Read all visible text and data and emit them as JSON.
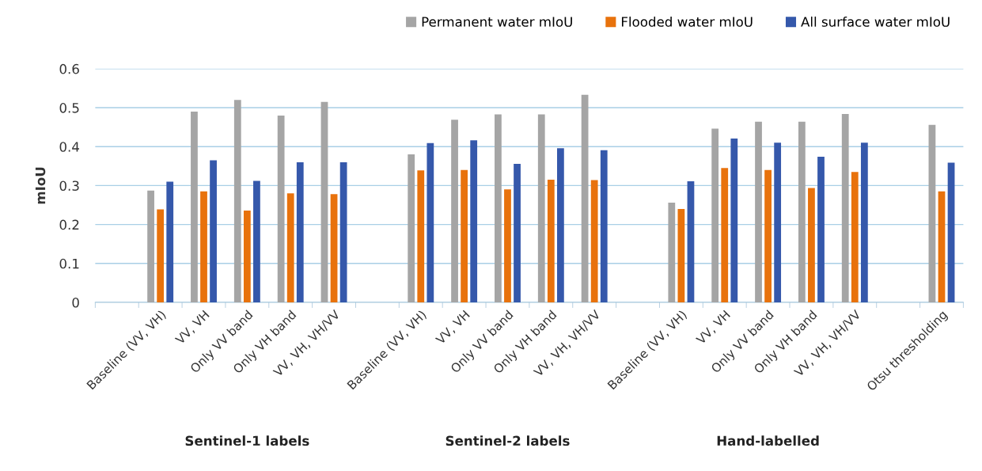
{
  "chart_data": {
    "type": "bar",
    "ylabel": "mIoU",
    "categories": [
      null,
      "Baseline (VV, VH)",
      "VV, VH",
      "Only VV band",
      "Only VH band",
      "VV, VH, VH/VV",
      null,
      "Baseline (VV, VH)",
      "VV, VH",
      "Only VV band",
      "Only VH band",
      "VV, VH, VH/VV",
      null,
      "Baseline (VV, VH)",
      "VV, VH",
      "Only VV band",
      "Only VH band",
      "VV, VH, VH/VV",
      null,
      "Otsu thresholding"
    ],
    "series": [
      {
        "name": "Permanent water mIoU",
        "color": "#a5a5a5",
        "values": [
          null,
          0.287,
          0.49,
          0.52,
          0.48,
          0.515,
          null,
          0.38,
          0.469,
          0.483,
          0.483,
          0.533,
          null,
          0.256,
          0.446,
          0.464,
          0.464,
          0.484,
          null,
          0.456
        ]
      },
      {
        "name": "Flooded water mIoU",
        "color": "#e8720c",
        "values": [
          null,
          0.239,
          0.285,
          0.236,
          0.28,
          0.278,
          null,
          0.339,
          0.34,
          0.29,
          0.315,
          0.314,
          null,
          0.24,
          0.345,
          0.34,
          0.294,
          0.335,
          null,
          0.285
        ]
      },
      {
        "name": "All surface water mIoU",
        "color": "#3558ab",
        "values": [
          null,
          0.31,
          0.365,
          0.312,
          0.36,
          0.36,
          null,
          0.409,
          0.416,
          0.356,
          0.396,
          0.391,
          null,
          0.311,
          0.421,
          0.41,
          0.374,
          0.41,
          null,
          0.359
        ]
      }
    ],
    "ylim": [
      0,
      0.6
    ],
    "yticks": [
      0,
      0.1,
      0.2,
      0.3,
      0.4,
      0.5,
      0.6
    ],
    "grid": "y",
    "legend": "top right",
    "annotations": [
      "Sentinel-1 labels",
      "Sentinel-2 labels",
      "Hand-labelled"
    ]
  }
}
